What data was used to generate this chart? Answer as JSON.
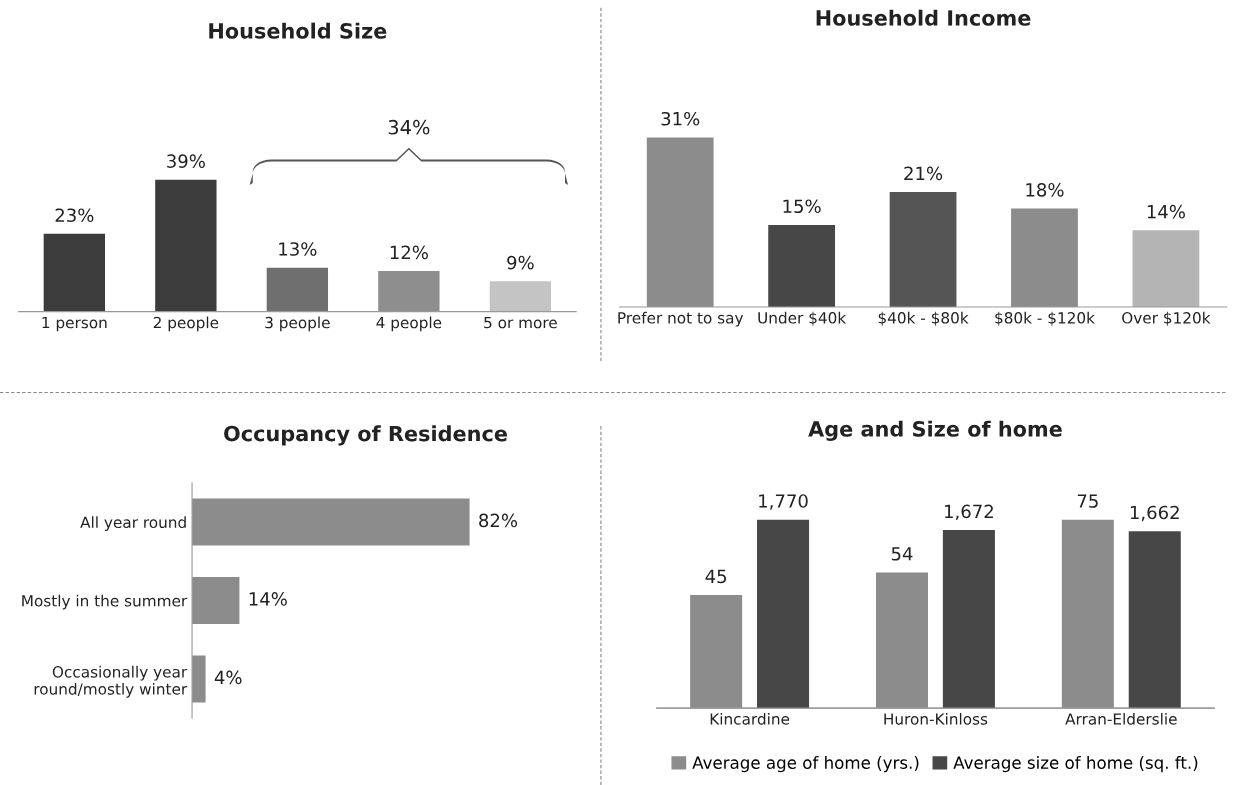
{
  "chart_data": [
    {
      "type": "bar",
      "title": "Household Size",
      "categories": [
        "1 person",
        "2 people",
        "3 people",
        "4 people",
        "5 or more"
      ],
      "values": [
        23,
        39,
        13,
        12,
        9
      ],
      "colors": [
        "#3c3c3c",
        "#3c3c3c",
        "#6f6f6f",
        "#8e8e8e",
        "#c4c4c4"
      ],
      "value_labels": [
        "23%",
        "39%",
        "13%",
        "12%",
        "9%"
      ],
      "annotations": [
        "34%"
      ],
      "tick_labels": "x"
    },
    {
      "type": "bar",
      "title": "Household Income",
      "categories": [
        "Prefer not to say",
        "Under $40k",
        "$40k - $80k",
        "$80k - $120k",
        "Over $120k"
      ],
      "values": [
        31,
        15,
        21,
        18,
        14
      ],
      "colors": [
        "#8c8c8c",
        "#474747",
        "#555555",
        "#8c8c8c",
        "#b4b4b4"
      ],
      "value_labels": [
        "31%",
        "15%",
        "21%",
        "18%",
        "14%"
      ],
      "tick_labels": "x"
    },
    {
      "type": "bar",
      "orientation": "horizontal",
      "title": "Occupancy of Residence",
      "categories": [
        "All year round",
        "Mostly in the summer",
        "Occasionally year\nround/mostly winter"
      ],
      "values": [
        82,
        14,
        4
      ],
      "colors": [
        "#8c8c8c",
        "#8c8c8c",
        "#8c8c8c"
      ],
      "value_labels": [
        "82%",
        "14%",
        "4%"
      ],
      "tick_labels": "y"
    },
    {
      "type": "bar",
      "title": "Age and Size of home",
      "categories": [
        "Kincardine",
        "Huron-Kinloss",
        "Arran-Elderslie"
      ],
      "legend": "bottom",
      "tick_labels": "x",
      "series": [
        {
          "name": "Average age of home (yrs.)",
          "color": "#8c8c8c",
          "values": [
            45,
            54,
            75
          ],
          "value_labels": [
            "45",
            "54",
            "75"
          ]
        },
        {
          "name": "Average size of home (sq. ft.)",
          "color": "#474747",
          "values": [
            1770,
            1672,
            1662
          ],
          "value_labels": [
            "1,770",
            "1,672",
            "1,662"
          ],
          "axis": "y2"
        }
      ]
    }
  ]
}
